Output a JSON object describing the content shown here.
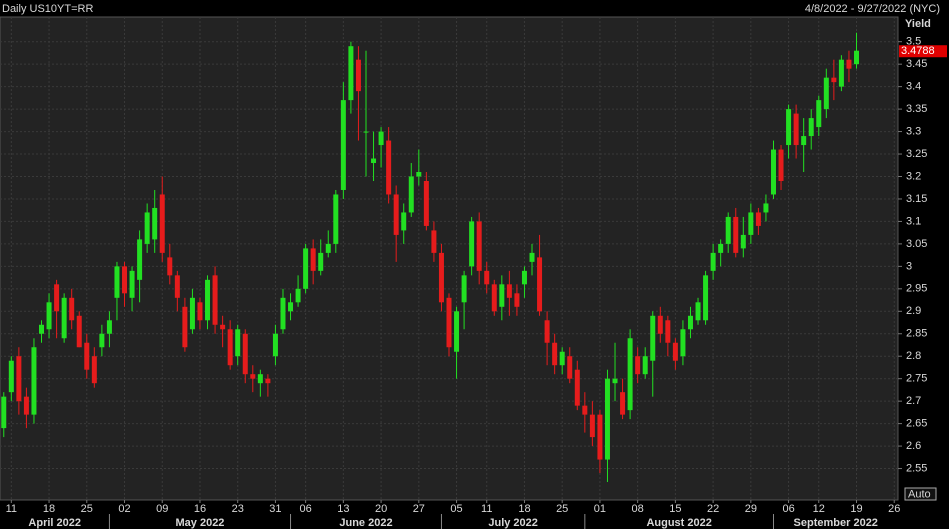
{
  "chart_data": {
    "type": "candlestick",
    "title": "Daily US10YT=RR",
    "subtitle": "4/8/2022 - 9/27/2022 (NYC)",
    "y_label": "Yield",
    "scale_mode": "Auto",
    "months": [
      "April 2022",
      "May 2022",
      "June 2022",
      "July 2022",
      "August 2022",
      "September 2022"
    ],
    "categories": [
      null,
      "11",
      null,
      null,
      null,
      null,
      "18",
      null,
      null,
      null,
      null,
      "25",
      null,
      null,
      null,
      null,
      "02",
      null,
      null,
      null,
      null,
      "09",
      null,
      null,
      null,
      null,
      "16",
      null,
      null,
      null,
      null,
      "23",
      null,
      null,
      null,
      null,
      "31",
      null,
      null,
      null,
      "06",
      null,
      null,
      null,
      null,
      "13",
      null,
      null,
      null,
      null,
      "20",
      null,
      null,
      null,
      null,
      "27",
      null,
      null,
      null,
      null,
      "05",
      null,
      null,
      null,
      "11",
      null,
      null,
      null,
      null,
      "18",
      null,
      null,
      null,
      null,
      "25",
      null,
      null,
      null,
      null,
      "01",
      null,
      null,
      null,
      null,
      "08",
      null,
      null,
      null,
      null,
      "15",
      null,
      null,
      null,
      null,
      "22",
      null,
      null,
      null,
      null,
      "29",
      null,
      null,
      null,
      null,
      "06",
      null,
      null,
      null,
      "12",
      null,
      null,
      null,
      null,
      "19",
      null,
      null,
      null,
      null,
      "26"
    ],
    "open": [
      2.64,
      2.72,
      2.8,
      2.71,
      2.67,
      2.85,
      2.86,
      2.96,
      2.84,
      2.93,
      2.89,
      2.83,
      2.8,
      2.82,
      2.85,
      2.93,
      3.0,
      2.93,
      2.97,
      3.05,
      3.06,
      3.16,
      3.02,
      2.98,
      2.91,
      2.86,
      2.92,
      2.88,
      2.98,
      2.87,
      2.86,
      2.8,
      2.85,
      2.76,
      2.74,
      2.75,
      2.8,
      2.86,
      2.9,
      2.92,
      2.95,
      3.04,
      2.99,
      3.03,
      3.05,
      3.17,
      3.37,
      3.46,
      3.3,
      3.23,
      3.27,
      3.28,
      3.16,
      3.08,
      3.12,
      3.2,
      3.19,
      3.08,
      3.03,
      2.93,
      2.81,
      2.92,
      3.0,
      3.1,
      2.99,
      2.96,
      2.91,
      2.96,
      2.94,
      2.96,
      3.01,
      3.02,
      2.88,
      2.83,
      2.78,
      2.8,
      2.77,
      2.69,
      2.67,
      2.67,
      2.57,
      2.74,
      2.72,
      2.68,
      2.8,
      2.76,
      2.79,
      2.89,
      2.88,
      2.83,
      2.8,
      2.86,
      2.88,
      2.88,
      2.99,
      3.03,
      3.05,
      3.11,
      3.04,
      3.07,
      3.12,
      3.12,
      3.16,
      3.26,
      3.27,
      3.34,
      3.27,
      3.29,
      3.31,
      3.35,
      3.42,
      3.4,
      3.46,
      3.45,
      null,
      null,
      null,
      null,
      null
    ],
    "high": [
      2.72,
      2.8,
      2.82,
      2.73,
      2.84,
      2.88,
      2.94,
      2.97,
      2.94,
      2.95,
      2.9,
      2.85,
      2.82,
      2.87,
      2.9,
      3.01,
      3.01,
      3.0,
      3.08,
      3.14,
      3.17,
      3.2,
      3.05,
      2.99,
      2.93,
      2.95,
      2.93,
      2.98,
      3.0,
      2.89,
      2.88,
      2.87,
      2.86,
      2.78,
      2.77,
      2.76,
      2.87,
      2.95,
      2.94,
      2.98,
      3.05,
      3.06,
      3.06,
      3.08,
      3.17,
      3.41,
      3.5,
      3.49,
      3.48,
      3.3,
      3.31,
      3.31,
      3.18,
      3.14,
      3.23,
      3.26,
      3.21,
      3.1,
      3.05,
      2.94,
      2.91,
      2.99,
      3.11,
      3.12,
      3.01,
      2.97,
      2.98,
      2.99,
      2.96,
      3.0,
      3.05,
      3.07,
      2.9,
      2.85,
      2.82,
      2.82,
      2.79,
      2.72,
      2.7,
      2.68,
      2.77,
      2.83,
      2.75,
      2.86,
      2.82,
      2.82,
      2.9,
      2.91,
      2.89,
      2.84,
      2.88,
      2.91,
      2.93,
      2.99,
      3.05,
      3.06,
      3.12,
      3.13,
      3.11,
      3.14,
      3.13,
      3.16,
      3.28,
      3.27,
      3.36,
      3.36,
      3.33,
      3.35,
      3.38,
      3.44,
      3.46,
      3.47,
      3.48,
      3.52,
      null,
      null,
      null,
      null,
      null
    ],
    "low": [
      2.62,
      2.7,
      2.67,
      2.64,
      2.65,
      2.83,
      2.84,
      2.84,
      2.83,
      2.86,
      2.82,
      2.75,
      2.73,
      2.8,
      2.82,
      2.88,
      2.91,
      2.9,
      2.92,
      3.03,
      3.03,
      3.01,
      2.96,
      2.9,
      2.81,
      2.85,
      2.86,
      2.86,
      2.85,
      2.82,
      2.77,
      2.78,
      2.74,
      2.72,
      2.71,
      2.71,
      2.78,
      2.85,
      2.88,
      2.91,
      2.94,
      2.96,
      2.98,
      3.02,
      3.03,
      3.15,
      3.34,
      3.28,
      3.2,
      3.19,
      3.22,
      3.14,
      3.01,
      3.05,
      3.11,
      3.18,
      3.08,
      3.01,
      2.9,
      2.8,
      2.75,
      2.86,
      2.98,
      2.96,
      2.94,
      2.89,
      2.88,
      2.89,
      2.89,
      2.93,
      2.98,
      2.89,
      2.78,
      2.76,
      2.76,
      2.74,
      2.68,
      2.63,
      2.6,
      2.54,
      2.52,
      2.7,
      2.66,
      2.66,
      2.74,
      2.75,
      2.71,
      2.83,
      2.8,
      2.77,
      2.78,
      2.84,
      2.87,
      2.87,
      2.97,
      3.0,
      3.03,
      3.02,
      3.02,
      3.05,
      3.07,
      3.1,
      3.15,
      3.17,
      3.24,
      3.24,
      3.21,
      3.26,
      3.29,
      3.33,
      3.37,
      3.39,
      3.41,
      3.44,
      null,
      null,
      null,
      null,
      null
    ],
    "close": [
      2.71,
      2.79,
      2.7,
      2.67,
      2.82,
      2.87,
      2.92,
      2.9,
      2.93,
      2.88,
      2.82,
      2.77,
      2.74,
      2.85,
      2.88,
      3.0,
      2.94,
      2.99,
      3.06,
      3.12,
      3.13,
      3.03,
      2.98,
      2.93,
      2.82,
      2.93,
      2.88,
      2.97,
      2.87,
      2.86,
      2.78,
      2.86,
      2.76,
      2.75,
      2.76,
      2.74,
      2.85,
      2.93,
      2.92,
      2.95,
      3.04,
      2.99,
      3.03,
      3.05,
      3.16,
      3.37,
      3.49,
      3.39,
      3.3,
      3.24,
      3.3,
      3.16,
      3.07,
      3.12,
      3.2,
      3.21,
      3.09,
      3.03,
      2.92,
      2.82,
      2.9,
      2.98,
      3.1,
      2.99,
      2.96,
      2.9,
      2.96,
      2.93,
      2.91,
      2.99,
      3.03,
      2.9,
      2.83,
      2.78,
      2.81,
      2.75,
      2.69,
      2.67,
      2.62,
      2.57,
      2.75,
      2.75,
      2.67,
      2.84,
      2.76,
      2.8,
      2.89,
      2.85,
      2.83,
      2.79,
      2.86,
      2.89,
      2.92,
      2.98,
      3.03,
      3.05,
      3.11,
      3.03,
      3.07,
      3.12,
      3.09,
      3.14,
      3.26,
      3.19,
      3.35,
      3.27,
      3.29,
      3.33,
      3.37,
      3.42,
      3.41,
      3.46,
      3.44,
      3.48,
      null,
      null,
      null,
      null,
      null
    ],
    "up_color": "#22e022",
    "down_color": "#e61c1c",
    "last_price": 3.4788,
    "last_price_color": "#e00000",
    "ylim": [
      2.48,
      3.555
    ],
    "yticks": [
      2.55,
      2.6,
      2.65,
      2.7,
      2.75,
      2.8,
      2.85,
      2.9,
      2.95,
      3,
      3.05,
      3.1,
      3.15,
      3.2,
      3.25,
      3.3,
      3.35,
      3.4,
      3.45,
      3.5
    ],
    "grid": true
  }
}
